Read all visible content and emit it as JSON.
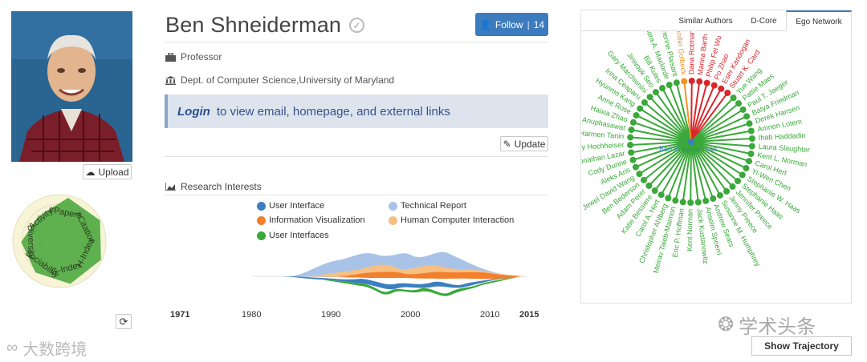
{
  "profile": {
    "name": "Ben Shneiderman",
    "position": "Professor",
    "affiliation": "Dept. of Computer Science,University of Maryland",
    "login_link": "Login",
    "login_text": "to view email, homepage, and external links"
  },
  "buttons": {
    "upload": "Upload",
    "follow": "Follow",
    "follow_count": "14",
    "update": "Update",
    "show_trajectory": "Show Trajectory"
  },
  "radar": {
    "labels": [
      "#Papers",
      "#Citation",
      "H-Index",
      "G-Index",
      "Sociability",
      "Diversity",
      "Activity"
    ]
  },
  "research": {
    "title": "Research Interests",
    "legend": [
      {
        "label": "User Interface",
        "color": "#3c7fc0"
      },
      {
        "label": "Technical Report",
        "color": "#a9c3e8"
      },
      {
        "label": "Information Visualization",
        "color": "#f17f2c"
      },
      {
        "label": "Human Computer Interaction",
        "color": "#f7bf82"
      },
      {
        "label": "User Interfaces",
        "color": "#3aa83a"
      }
    ],
    "axis": {
      "start": "1971",
      "ticks": [
        "1980",
        "1990",
        "2000",
        "2010"
      ],
      "end": "2015"
    }
  },
  "ego": {
    "tabs": [
      "Similar Authors",
      "D-Core",
      "Ego Network"
    ],
    "center": "Ben Shneiderman",
    "red_nodes": [
      "Dana Rotman",
      "Marina Barth",
      "Philip Fei Wu",
      "Po Zhao",
      "Eser Kandogan",
      "Stuart K. Card"
    ],
    "orange_nodes": [
      "Jennifer Golbeck"
    ],
    "green_nodes": [
      "Yue Wang",
      "Pattie Maes",
      "Paul T. Jaeger",
      "Batya Friedman",
      "Derek Hansen",
      "Amnon Lotem",
      "Ihab Haddadin",
      "Laura Slaughter",
      "Kent L. Norman",
      "Carol Hert",
      "Yi-Wen Chen",
      "Stephanie W. Haas",
      "Stephanie Haas",
      "Jennifer Preece",
      "Jenny Preece",
      "Susanne M. Humphrey",
      "Andrew Sears",
      "Anselm Spoerri",
      "Jack Kustanowitz",
      "Kent Norman",
      "Eric P. Hoffman",
      "Meirav Taieb-Maimon",
      "Christopher Ahlberg",
      "Carol A. Hert",
      "Katie Bessiere",
      "Adam Perer",
      "Ben Bederson",
      "Jewel David Wang",
      "Aleks Aris",
      "Cody Dunne",
      "Jonathan Lazar",
      "Harry Hochheiser",
      "Harmen Tanin",
      "Anuphasawat",
      "Haixia Zhao",
      "Anne Rose",
      "Hyunmo Kang",
      "Irina Ceaparu",
      "Gary Marchionini",
      "Jinwook Seo",
      "Bill Kules",
      "Sara A. Maclorde",
      "Catherine Plaisant"
    ],
    "colors": {
      "red": "#d9262b",
      "orange": "#f39325",
      "green": "#3aa83a",
      "center": "#3c7fc0"
    }
  },
  "watermarks": {
    "right": "学术头条",
    "left": "大数跨境"
  }
}
